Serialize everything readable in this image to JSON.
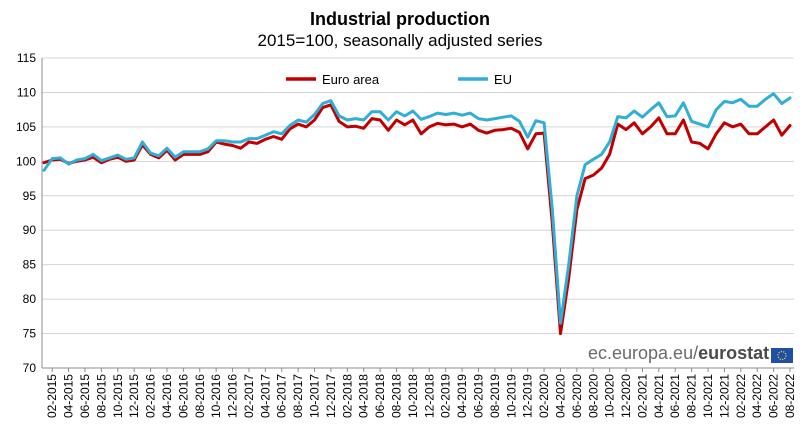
{
  "chart_data": {
    "type": "line",
    "title": "Industrial production",
    "subtitle": "2015=100, seasonally adjusted series",
    "xlabel": "",
    "ylabel": "",
    "ylim": [
      70,
      115
    ],
    "yticks": [
      70,
      75,
      80,
      85,
      90,
      95,
      100,
      105,
      110,
      115
    ],
    "grid": true,
    "legend": "top-center",
    "x": [
      "01-2015",
      "02-2015",
      "03-2015",
      "04-2015",
      "05-2015",
      "06-2015",
      "07-2015",
      "08-2015",
      "09-2015",
      "10-2015",
      "11-2015",
      "12-2015",
      "01-2016",
      "02-2016",
      "03-2016",
      "04-2016",
      "05-2016",
      "06-2016",
      "07-2016",
      "08-2016",
      "09-2016",
      "10-2016",
      "11-2016",
      "12-2016",
      "01-2017",
      "02-2017",
      "03-2017",
      "04-2017",
      "05-2017",
      "06-2017",
      "07-2017",
      "08-2017",
      "09-2017",
      "10-2017",
      "11-2017",
      "12-2017",
      "01-2018",
      "02-2018",
      "03-2018",
      "04-2018",
      "05-2018",
      "06-2018",
      "07-2018",
      "08-2018",
      "09-2018",
      "10-2018",
      "11-2018",
      "12-2018",
      "01-2019",
      "02-2019",
      "03-2019",
      "04-2019",
      "05-2019",
      "06-2019",
      "07-2019",
      "08-2019",
      "09-2019",
      "10-2019",
      "11-2019",
      "12-2019",
      "01-2020",
      "02-2020",
      "03-2020",
      "04-2020",
      "05-2020",
      "06-2020",
      "07-2020",
      "08-2020",
      "09-2020",
      "10-2020",
      "11-2020",
      "12-2020",
      "01-2021",
      "02-2021",
      "03-2021",
      "04-2021",
      "05-2021",
      "06-2021",
      "07-2021",
      "08-2021",
      "09-2021",
      "10-2021",
      "11-2021",
      "12-2021",
      "01-2022",
      "02-2022",
      "03-2022",
      "04-2022",
      "05-2022",
      "06-2022",
      "07-2022",
      "08-2022"
    ],
    "xticklabels": [
      "02-2015",
      "04-2015",
      "06-2015",
      "08-2015",
      "10-2015",
      "12-2015",
      "02-2016",
      "04-2016",
      "06-2016",
      "08-2016",
      "10-2016",
      "12-2016",
      "02-2017",
      "04-2017",
      "06-2017",
      "08-2017",
      "10-2017",
      "12-2017",
      "02-2018",
      "04-2018",
      "06-2018",
      "08-2018",
      "10-2018",
      "12-2018",
      "02-2019",
      "04-2019",
      "06-2019",
      "08-2019",
      "10-2019",
      "12-2019",
      "02-2020",
      "04-2020",
      "06-2020",
      "08-2020",
      "10-2020",
      "12-2020",
      "02-2021",
      "04-2021",
      "06-2021",
      "08-2021",
      "10-2021",
      "12-2021",
      "02-2022",
      "04-2022",
      "06-2022",
      "08-2022"
    ],
    "series": [
      {
        "name": "Euro area",
        "color": "#c00000",
        "values": [
          99.8,
          100.2,
          100.3,
          99.7,
          100.0,
          100.2,
          100.6,
          99.8,
          100.3,
          100.6,
          100.0,
          100.2,
          102.4,
          101.0,
          100.5,
          101.6,
          100.2,
          101.0,
          101.0,
          101.0,
          101.4,
          102.8,
          102.5,
          102.3,
          101.9,
          102.8,
          102.6,
          103.2,
          103.6,
          103.2,
          104.7,
          105.4,
          105.0,
          106.0,
          107.8,
          108.2,
          105.8,
          105.0,
          105.1,
          104.8,
          106.2,
          106.0,
          104.5,
          106.0,
          105.3,
          106.0,
          104.0,
          105.0,
          105.5,
          105.3,
          105.4,
          105.0,
          105.4,
          104.5,
          104.1,
          104.5,
          104.6,
          104.8,
          104.2,
          101.8,
          104.0,
          104.1,
          91.0,
          75.0,
          83.0,
          93.0,
          97.5,
          98.0,
          99.0,
          101.0,
          105.4,
          104.6,
          105.6,
          104.0,
          105.0,
          106.3,
          104.0,
          104.0,
          106.0,
          102.8,
          102.6,
          101.8,
          104.0,
          105.6,
          105.0,
          105.4,
          104.0,
          104.0,
          105.0,
          106.0,
          103.8,
          105.2
        ]
      },
      {
        "name": "EU",
        "color": "#31aed6",
        "values": [
          98.7,
          100.4,
          100.5,
          99.6,
          100.2,
          100.4,
          101.0,
          100.1,
          100.5,
          100.9,
          100.3,
          100.5,
          102.8,
          101.2,
          100.8,
          101.9,
          100.6,
          101.4,
          101.4,
          101.4,
          101.8,
          103.0,
          103.0,
          102.8,
          102.8,
          103.3,
          103.3,
          103.8,
          104.3,
          104.0,
          105.2,
          106.0,
          105.7,
          106.8,
          108.4,
          108.8,
          106.6,
          106.0,
          106.2,
          106.0,
          107.2,
          107.2,
          106.0,
          107.2,
          106.6,
          107.3,
          106.1,
          106.5,
          107.0,
          106.8,
          107.0,
          106.7,
          107.0,
          106.2,
          106.0,
          106.2,
          106.4,
          106.6,
          105.8,
          103.5,
          105.9,
          105.6,
          93.0,
          76.5,
          85.0,
          95.0,
          99.5,
          100.3,
          101.0,
          102.8,
          106.5,
          106.3,
          107.3,
          106.4,
          107.5,
          108.5,
          106.5,
          106.6,
          108.5,
          105.8,
          105.4,
          105.0,
          107.5,
          108.7,
          108.5,
          109.0,
          108.0,
          108.0,
          109.0,
          109.8,
          108.4,
          109.2
        ]
      }
    ]
  },
  "source": {
    "url_prefix": "ec.europa.eu/",
    "brand": "eurostat",
    "flag_color": "#1f4fa8",
    "star_color": "#ffd400"
  }
}
